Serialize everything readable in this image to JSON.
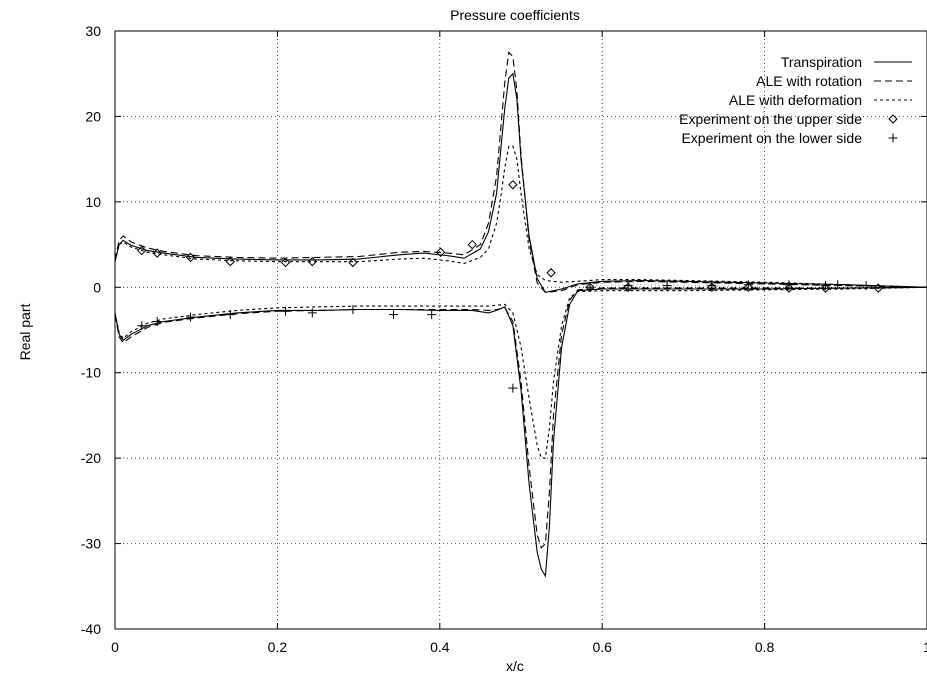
{
  "chart_data": {
    "type": "line",
    "title": "Pressure coefficients",
    "xlabel": "x/c",
    "ylabel": "Real part",
    "xlim": [
      0,
      1
    ],
    "ylim": [
      -40,
      30
    ],
    "xticks": [
      0,
      0.2,
      0.4,
      0.6,
      0.8,
      1
    ],
    "xtick_labels": [
      "0",
      "0.2",
      "0.4",
      "0.6",
      "0.8",
      "1"
    ],
    "yticks": [
      -40,
      -30,
      -20,
      -10,
      0,
      10,
      20,
      30
    ],
    "ytick_labels": [
      "-40",
      "-30",
      "-20",
      "-10",
      "0",
      "10",
      "20",
      "30"
    ],
    "grid": true,
    "legend_position": "top-right",
    "series": [
      {
        "name": "Transpiration",
        "style": "solid",
        "upper": {
          "x": [
            0,
            0.005,
            0.01,
            0.02,
            0.04,
            0.06,
            0.1,
            0.15,
            0.2,
            0.25,
            0.3,
            0.35,
            0.38,
            0.41,
            0.43,
            0.45,
            0.46,
            0.47,
            0.475,
            0.48,
            0.485,
            0.49,
            0.495,
            0.5,
            0.51,
            0.52,
            0.53,
            0.55,
            0.57,
            0.6,
            0.65,
            0.7,
            0.8,
            0.9,
            1.0
          ],
          "y": [
            3.0,
            5.0,
            5.5,
            4.9,
            4.3,
            4.0,
            3.5,
            3.3,
            3.2,
            3.2,
            3.3,
            3.8,
            4.0,
            3.7,
            3.4,
            4.5,
            6.5,
            11.0,
            16.0,
            21.0,
            24.5,
            25.0,
            22.0,
            15.0,
            6.0,
            1.0,
            -0.6,
            -0.2,
            0.4,
            0.7,
            0.8,
            0.7,
            0.5,
            0.3,
            0.0
          ]
        },
        "lower": {
          "x": [
            0,
            0.005,
            0.01,
            0.02,
            0.04,
            0.06,
            0.1,
            0.15,
            0.2,
            0.25,
            0.3,
            0.35,
            0.4,
            0.44,
            0.46,
            0.47,
            0.48,
            0.49,
            0.5,
            0.51,
            0.52,
            0.525,
            0.53,
            0.535,
            0.54,
            0.55,
            0.56,
            0.57,
            0.6,
            0.65,
            0.7,
            0.8,
            0.9,
            1.0
          ],
          "y": [
            -3.0,
            -5.5,
            -6.2,
            -5.5,
            -4.5,
            -4.0,
            -3.5,
            -3.0,
            -2.7,
            -2.7,
            -2.6,
            -2.6,
            -2.7,
            -2.7,
            -3.0,
            -2.7,
            -2.3,
            -4.5,
            -12.0,
            -23.0,
            -31.0,
            -33.0,
            -33.8,
            -28.0,
            -18.0,
            -7.0,
            -2.0,
            -0.4,
            -0.2,
            -0.2,
            -0.2,
            -0.2,
            -0.1,
            0.0
          ]
        }
      },
      {
        "name": "ALE with rotation",
        "style": "dashed",
        "upper": {
          "x": [
            0,
            0.005,
            0.01,
            0.02,
            0.04,
            0.06,
            0.1,
            0.15,
            0.2,
            0.25,
            0.3,
            0.35,
            0.38,
            0.41,
            0.43,
            0.45,
            0.46,
            0.47,
            0.475,
            0.48,
            0.485,
            0.49,
            0.495,
            0.5,
            0.51,
            0.52,
            0.53,
            0.55,
            0.57,
            0.6,
            0.65,
            0.7,
            0.8,
            0.9,
            1.0
          ],
          "y": [
            3.2,
            5.5,
            6.0,
            5.3,
            4.6,
            4.2,
            3.7,
            3.5,
            3.4,
            3.5,
            3.6,
            4.1,
            4.2,
            4.0,
            3.8,
            5.0,
            7.5,
            13.0,
            18.5,
            24.0,
            27.5,
            27.0,
            23.0,
            15.5,
            5.5,
            0.5,
            -0.6,
            -0.4,
            0.3,
            0.6,
            0.7,
            0.6,
            0.4,
            0.2,
            0.0
          ]
        },
        "lower": {
          "x": [
            0,
            0.005,
            0.01,
            0.02,
            0.04,
            0.06,
            0.1,
            0.15,
            0.2,
            0.25,
            0.3,
            0.35,
            0.4,
            0.44,
            0.46,
            0.47,
            0.48,
            0.49,
            0.5,
            0.51,
            0.52,
            0.525,
            0.53,
            0.535,
            0.54,
            0.55,
            0.56,
            0.57,
            0.6,
            0.65,
            0.7,
            0.8,
            0.9,
            1.0
          ],
          "y": [
            -3.2,
            -5.8,
            -6.5,
            -5.8,
            -4.7,
            -4.1,
            -3.6,
            -3.1,
            -2.8,
            -2.7,
            -2.6,
            -2.6,
            -2.6,
            -2.6,
            -2.7,
            -2.6,
            -2.4,
            -4.0,
            -11.0,
            -21.0,
            -29.0,
            -30.5,
            -30.0,
            -24.0,
            -15.0,
            -5.5,
            -1.5,
            -0.3,
            -0.1,
            -0.1,
            -0.1,
            -0.1,
            -0.1,
            0.0
          ]
        }
      },
      {
        "name": "ALE with deformation",
        "style": "dotted",
        "upper": {
          "x": [
            0,
            0.005,
            0.01,
            0.02,
            0.04,
            0.06,
            0.1,
            0.15,
            0.2,
            0.25,
            0.3,
            0.35,
            0.38,
            0.41,
            0.43,
            0.45,
            0.46,
            0.47,
            0.475,
            0.48,
            0.485,
            0.49,
            0.495,
            0.5,
            0.51,
            0.52,
            0.53,
            0.55,
            0.57,
            0.6,
            0.65,
            0.7,
            0.8,
            0.9,
            1.0
          ],
          "y": [
            3.0,
            5.0,
            5.3,
            4.7,
            4.1,
            3.8,
            3.3,
            3.1,
            3.0,
            3.0,
            3.0,
            3.3,
            3.4,
            3.1,
            2.8,
            3.5,
            4.5,
            7.5,
            10.5,
            14.0,
            16.5,
            16.5,
            15.0,
            11.0,
            4.5,
            1.5,
            0.8,
            0.6,
            0.7,
            0.9,
            0.9,
            0.8,
            0.6,
            0.3,
            0.0
          ]
        },
        "lower": {
          "x": [
            0,
            0.005,
            0.01,
            0.02,
            0.04,
            0.06,
            0.1,
            0.15,
            0.2,
            0.25,
            0.3,
            0.35,
            0.4,
            0.44,
            0.46,
            0.47,
            0.48,
            0.49,
            0.5,
            0.51,
            0.52,
            0.525,
            0.53,
            0.535,
            0.54,
            0.55,
            0.56,
            0.57,
            0.6,
            0.65,
            0.7,
            0.8,
            0.9,
            1.0
          ],
          "y": [
            -3.0,
            -5.3,
            -6.0,
            -5.2,
            -4.2,
            -3.7,
            -3.2,
            -2.7,
            -2.4,
            -2.3,
            -2.2,
            -2.2,
            -2.2,
            -2.2,
            -2.2,
            -2.1,
            -2.0,
            -3.0,
            -7.0,
            -13.0,
            -18.5,
            -20.0,
            -20.0,
            -16.5,
            -11.0,
            -4.5,
            -1.2,
            -0.5,
            -0.4,
            -0.4,
            -0.4,
            -0.3,
            -0.2,
            0.0
          ]
        }
      }
    ],
    "experiments": [
      {
        "name": "Experiment on the upper side",
        "marker": "diamond",
        "x": [
          0.033,
          0.052,
          0.093,
          0.142,
          0.21,
          0.243,
          0.293,
          0.401,
          0.44,
          0.49,
          0.537,
          0.585,
          0.632,
          0.735,
          0.78,
          0.83,
          0.875,
          0.94
        ],
        "y": [
          4.3,
          4.0,
          3.5,
          3.0,
          2.9,
          3.0,
          2.9,
          4.1,
          5.0,
          12.0,
          1.7,
          0.0,
          0.0,
          0.0,
          0.0,
          -0.1,
          -0.1,
          -0.1
        ]
      },
      {
        "name": "Experiment on the lower side",
        "marker": "plus",
        "x": [
          0.033,
          0.052,
          0.093,
          0.142,
          0.21,
          0.243,
          0.293,
          0.343,
          0.39,
          0.49,
          0.585,
          0.632,
          0.68,
          0.735,
          0.78,
          0.83,
          0.875,
          0.89,
          0.925
        ],
        "y": [
          -4.5,
          -4.0,
          -3.5,
          -3.2,
          -2.8,
          -3.0,
          -2.6,
          -3.2,
          -3.2,
          -11.8,
          0.0,
          0.2,
          0.2,
          0.2,
          0.3,
          0.3,
          0.2,
          0.3,
          0.2
        ]
      }
    ]
  }
}
